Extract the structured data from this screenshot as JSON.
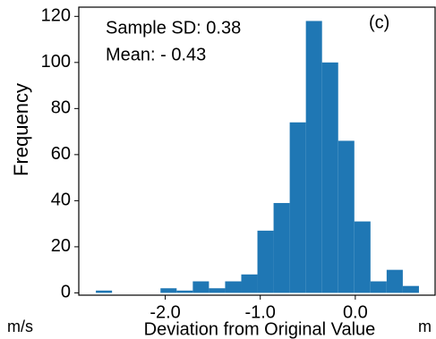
{
  "chart_data": {
    "type": "histogram",
    "xlabel": "Deviation from Original Value",
    "ylabel": "Frequency",
    "annotations": [
      "Sample SD: 0.38",
      "Mean: - 0.43",
      "(c)"
    ],
    "unit_labels": [
      "m/s",
      "m"
    ],
    "bins": [
      -2.73,
      -2.56,
      -2.39,
      -2.22,
      -2.05,
      -1.88,
      -1.71,
      -1.54,
      -1.37,
      -1.2,
      -1.03,
      -0.86,
      -0.69,
      -0.52,
      -0.35,
      -0.18,
      -0.01,
      0.16,
      0.33,
      0.5,
      0.67
    ],
    "values": [
      1,
      0,
      0,
      0,
      2,
      1,
      5,
      2,
      5,
      8,
      27,
      39,
      74,
      118,
      100,
      66,
      31,
      5,
      10,
      3
    ],
    "color": "#1f77b4",
    "xlim": [
      -2.91,
      0.84
    ],
    "ylim": [
      -1,
      124
    ],
    "xticks": [
      {
        "value": -2,
        "label": "-2.0"
      },
      {
        "value": -1,
        "label": "-1.0"
      },
      {
        "value": 0,
        "label": "0.0"
      }
    ],
    "yticks": [
      0,
      20,
      40,
      60,
      80,
      100,
      120
    ]
  }
}
